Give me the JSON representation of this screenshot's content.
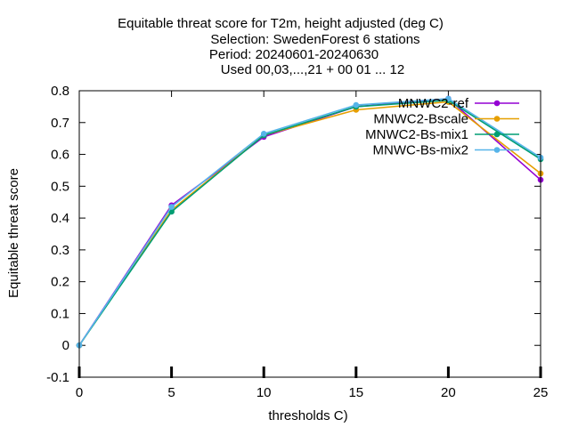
{
  "chart_data": {
    "type": "line",
    "title_lines": [
      "Equitable threat score  for T2m, height adjusted (deg C)",
      "Selection: SwedenForest      6 stations",
      "Period: 20240601-20240630",
      "Used 00,03,...,21 + 00 01 ... 12"
    ],
    "xlabel": "thresholds C)",
    "ylabel": "Equitable threat score",
    "x": [
      0,
      5,
      10,
      15,
      20,
      25
    ],
    "xlim": [
      0,
      25
    ],
    "ylim": [
      -0.1,
      0.8
    ],
    "xticks": [
      0,
      5,
      10,
      15,
      20,
      25
    ],
    "yticks": [
      -0.1,
      0,
      0.1,
      0.2,
      0.3,
      0.4,
      0.5,
      0.6,
      0.7,
      0.8
    ],
    "ytick_labels": [
      "-0.1",
      "0",
      "0.1",
      "0.2",
      "0.3",
      "0.4",
      "0.5",
      "0.6",
      "0.7",
      "0.8"
    ],
    "legend_position": "top-right",
    "series": [
      {
        "name": "MNWC2-ref",
        "color": "#9400d3",
        "values": [
          0,
          0.44,
          0.655,
          0.75,
          0.775,
          0.52
        ]
      },
      {
        "name": "MNWC2-Bscale",
        "color": "#e69f00",
        "values": [
          0,
          0.425,
          0.66,
          0.74,
          0.765,
          0.54
        ]
      },
      {
        "name": "MNWC2-Bs-mix1",
        "color": "#009e73",
        "values": [
          0,
          0.42,
          0.66,
          0.75,
          0.77,
          0.585
        ]
      },
      {
        "name": "MNWC-Bs-mix2",
        "color": "#56b4e9",
        "values": [
          0,
          0.435,
          0.665,
          0.755,
          0.775,
          0.59
        ]
      }
    ]
  }
}
